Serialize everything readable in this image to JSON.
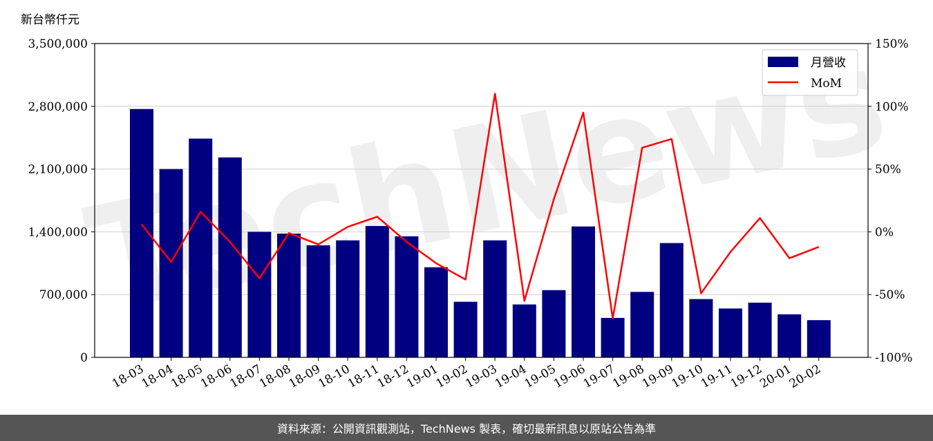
{
  "unit_label": "新台幣仟元",
  "footer_text": "資料來源：公開資訊觀測站，TechNews 製表，確切最新訊息以原站公告為準",
  "watermark": "TechNews",
  "colors": {
    "bar": "#000080",
    "line": "#ff0000",
    "grid": "#d0d0d0",
    "footer_bg": "#555555"
  },
  "chart_data": {
    "type": "bar",
    "categories": [
      "18-03",
      "18-04",
      "18-05",
      "18-06",
      "18-07",
      "18-08",
      "18-09",
      "18-10",
      "18-11",
      "18-12",
      "19-01",
      "19-02",
      "19-03",
      "19-04",
      "19-05",
      "19-06",
      "19-07",
      "19-08",
      "19-09",
      "19-10",
      "19-11",
      "19-12",
      "20-01",
      "20-02"
    ],
    "series": [
      {
        "name": "月營收",
        "type": "bar",
        "axis": "left",
        "values": [
          2770000,
          2100000,
          2440000,
          2230000,
          1400000,
          1380000,
          1250000,
          1305000,
          1465000,
          1350000,
          1005000,
          620000,
          1305000,
          590000,
          750000,
          1460000,
          440000,
          730000,
          1275000,
          650000,
          545000,
          610000,
          480000,
          415000
        ]
      },
      {
        "name": "MoM",
        "type": "line",
        "axis": "right",
        "values": [
          6,
          -24,
          16,
          -8,
          -37,
          -1,
          -10,
          4,
          12,
          -8,
          -25,
          -38,
          110,
          -55,
          26,
          95,
          -69,
          67,
          74,
          -49,
          -16,
          11,
          -21,
          -12
        ]
      }
    ],
    "y_left": {
      "lim": [
        0,
        3500000
      ],
      "ticks": [
        "0",
        "700,000",
        "1,400,000",
        "2,100,000",
        "2,800,000",
        "3,500,000"
      ],
      "values": [
        0,
        700000,
        1400000,
        2100000,
        2800000,
        3500000
      ]
    },
    "y_right": {
      "lim": [
        -100,
        150
      ],
      "ticks": [
        "-100%",
        "-50%",
        "0%",
        "50%",
        "100%",
        "150%"
      ],
      "values": [
        -100,
        -50,
        0,
        50,
        100,
        150
      ]
    },
    "grid": true,
    "legend": "top-right"
  }
}
